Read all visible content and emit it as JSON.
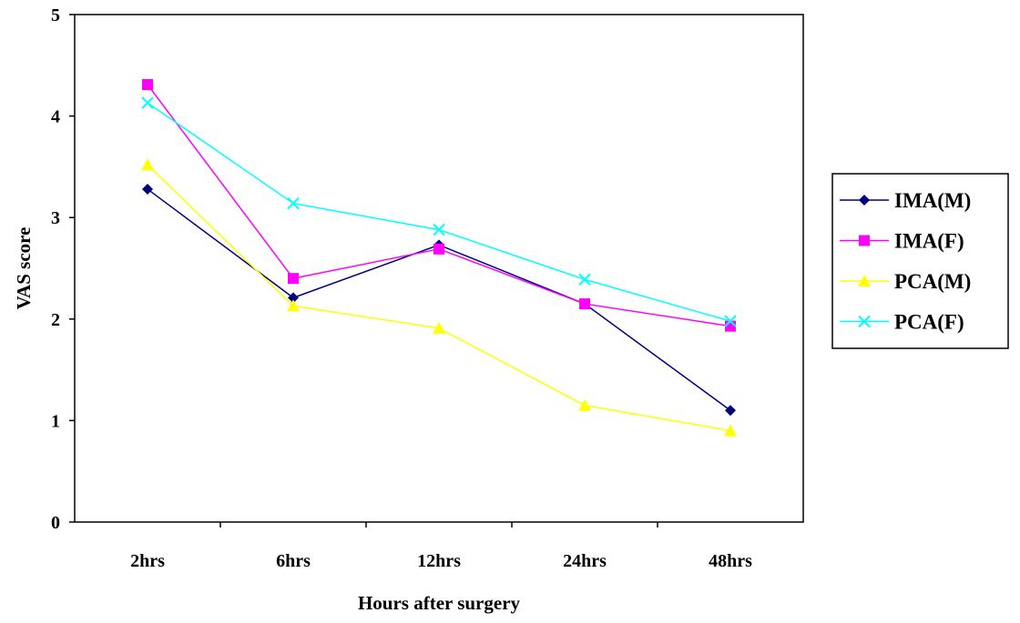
{
  "chart_data": {
    "type": "line",
    "xlabel": "Hours after surgery",
    "ylabel": "VAS score",
    "categories": [
      "2hrs",
      "6hrs",
      "12hrs",
      "24hrs",
      "48hrs"
    ],
    "ylim": [
      0,
      5
    ],
    "yticks": [
      "0",
      "1",
      "2",
      "3",
      "4",
      "5"
    ],
    "grid": false,
    "legend_position": "right",
    "series": [
      {
        "name": "IMA(M)",
        "values": [
          3.28,
          2.21,
          2.73,
          2.15,
          1.1
        ],
        "color": "#000080",
        "marker": "diamond"
      },
      {
        "name": "IMA(F)",
        "values": [
          4.31,
          2.4,
          2.69,
          2.15,
          1.93
        ],
        "color": "#ff00ff",
        "marker": "square"
      },
      {
        "name": "PCA(M)",
        "values": [
          3.52,
          2.13,
          1.91,
          1.15,
          0.9
        ],
        "color": "#ffff00",
        "marker": "triangle"
      },
      {
        "name": "PCA(F)",
        "values": [
          4.13,
          3.14,
          2.88,
          2.39,
          1.98
        ],
        "color": "#00ffff",
        "marker": "x"
      }
    ]
  }
}
